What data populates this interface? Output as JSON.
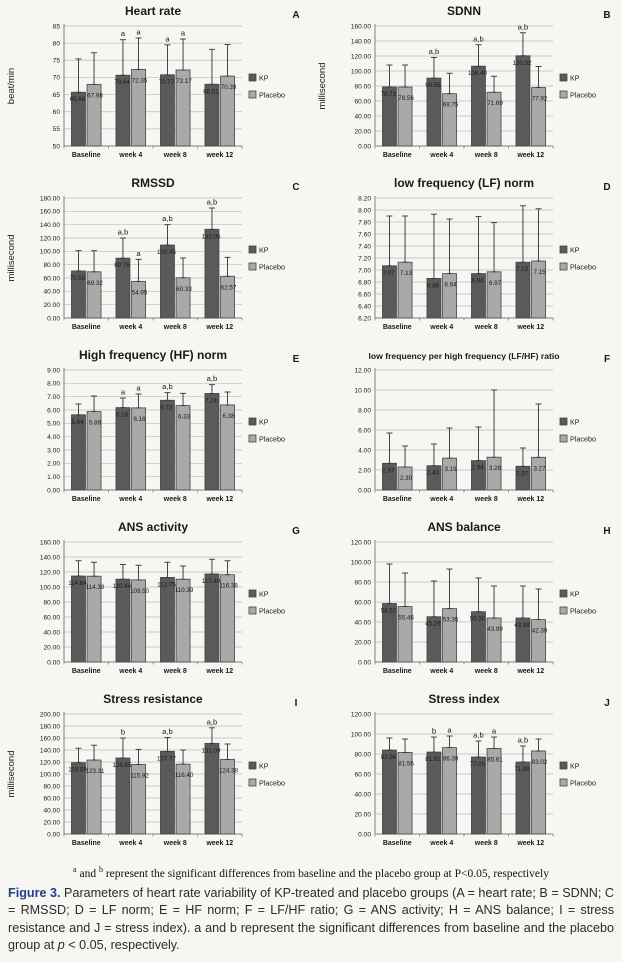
{
  "legend": {
    "kp_label": "KP",
    "placebo_label": "Placebo"
  },
  "colors": {
    "kp": "#5a5a5a",
    "placebo": "#a9a9a9",
    "bar_border": "#454545",
    "grid": "#bdbdbd",
    "axis": "#808080",
    "caption_label": "#23408e"
  },
  "footnote": {
    "sup_a": "a",
    "mid": " and ",
    "sup_b": "b",
    "rest": " represent the significant differences from baseline and the placebo group at P<0.05, respectively"
  },
  "caption": {
    "label": "Figure 3.",
    "body": " Parameters of heart rate variability of KP-treated and placebo groups (A = heart rate; B = SDNN; C = RMSSD; D = LF norm; E = HF norm; F = LF/HF ratio; G = ANS activity; H = ANS balance; I = stress resistance and J = stress index). a and b represent the significant differences from baseline and the placebo group at ",
    "p_italic": "p",
    "tail": " < 0.05, respectively."
  },
  "chart_data": [
    {
      "panel": "A",
      "type": "bar",
      "title": "Heart rate",
      "title_size": 12,
      "ylabel": "beat/min",
      "ylim": [
        50,
        85
      ],
      "ystep": 5,
      "ydec": 0,
      "categories": [
        "Baseline",
        "week 4",
        "week 8",
        "week 12"
      ],
      "series": [
        {
          "name": "KP",
          "values": [
            65.68,
            70.64,
            70.77,
            68.01
          ],
          "err_top": [
            75.4,
            81.0,
            79.5,
            78.2
          ],
          "sig": [
            "",
            "a",
            "a",
            ""
          ]
        },
        {
          "name": "Placebo",
          "values": [
            67.98,
            72.35,
            72.17,
            70.39
          ],
          "err_top": [
            77.2,
            81.5,
            81.2,
            79.6
          ],
          "sig": [
            "",
            "a",
            "a",
            ""
          ]
        }
      ]
    },
    {
      "panel": "B",
      "type": "bar",
      "title": "SDNN",
      "title_size": 12,
      "ylabel": "millisecond",
      "ylim": [
        0,
        160
      ],
      "ystep": 20,
      "ydec": 2,
      "categories": [
        "Baseline",
        "week 4",
        "week 8",
        "week 12"
      ],
      "series": [
        {
          "name": "KP",
          "values": [
            78.73,
            90.56,
            106.4,
            120.32
          ],
          "err_top": [
            108,
            118,
            135,
            151
          ],
          "sig": [
            "",
            "a,b",
            "a,b",
            "a,b"
          ]
        },
        {
          "name": "Placebo",
          "values": [
            78.56,
            69.75,
            71.69,
            77.92
          ],
          "err_top": [
            108,
            97,
            93,
            106
          ],
          "sig": [
            "",
            "",
            "",
            ""
          ]
        }
      ]
    },
    {
      "panel": "C",
      "type": "bar",
      "title": "RMSSD",
      "title_size": 12,
      "ylabel": "millisecond",
      "ylim": [
        0,
        180
      ],
      "ystep": 20,
      "ydec": 2,
      "categories": [
        "Baseline",
        "week 4",
        "week 8",
        "week 12"
      ],
      "series": [
        {
          "name": "KP",
          "values": [
            70.55,
            89.76,
            109.45,
            133.05
          ],
          "err_top": [
            101,
            120,
            140,
            165
          ],
          "sig": [
            "",
            "a,b",
            "a,b",
            "a,b"
          ]
        },
        {
          "name": "Placebo",
          "values": [
            69.32,
            54.95,
            60.33,
            62.57
          ],
          "err_top": [
            101,
            88,
            90,
            91
          ],
          "sig": [
            "",
            "a",
            "",
            ""
          ]
        }
      ]
    },
    {
      "panel": "D",
      "type": "bar",
      "title": "low frequency (LF) norm",
      "title_size": 12,
      "ylabel": "",
      "ylim": [
        6.2,
        8.2
      ],
      "ystep": 0.2,
      "ydec": 2,
      "categories": [
        "Baseline",
        "week 4",
        "week 8",
        "week 12"
      ],
      "series": [
        {
          "name": "KP",
          "values": [
            7.07,
            6.86,
            6.94,
            7.13
          ],
          "err_top": [
            7.9,
            7.93,
            7.89,
            8.07
          ],
          "sig": [
            "",
            "",
            "",
            ""
          ]
        },
        {
          "name": "Placebo",
          "values": [
            7.13,
            6.94,
            6.97,
            7.15
          ],
          "err_top": [
            7.9,
            7.85,
            7.79,
            8.02
          ],
          "sig": [
            "",
            "",
            "",
            ""
          ]
        }
      ]
    },
    {
      "panel": "E",
      "type": "bar",
      "title": "High frequency (HF) norm",
      "title_size": 12,
      "ylabel": "",
      "ylim": [
        0,
        9.0
      ],
      "ystep": 1.0,
      "ydec": 2,
      "categories": [
        "Baseline",
        "week 4",
        "week 8",
        "week 12"
      ],
      "series": [
        {
          "name": "KP",
          "values": [
            5.64,
            6.18,
            6.73,
            7.24
          ],
          "err_top": [
            6.45,
            6.9,
            7.3,
            7.9
          ],
          "sig": [
            "",
            "a",
            "a,b",
            "a,b"
          ]
        },
        {
          "name": "Placebo",
          "values": [
            5.88,
            6.16,
            6.33,
            6.38
          ],
          "err_top": [
            7.05,
            7.2,
            7.25,
            7.35
          ],
          "sig": [
            "",
            "a",
            "",
            ""
          ]
        }
      ]
    },
    {
      "panel": "F",
      "type": "bar",
      "title": "low frequency per high frequency (LF/HF)  ratio",
      "title_size": 8.6,
      "ylabel": "",
      "ylim": [
        0,
        12.0
      ],
      "ystep": 2.0,
      "ydec": 2,
      "categories": [
        "Baseline",
        "week 4",
        "week 8",
        "week 12"
      ],
      "series": [
        {
          "name": "KP",
          "values": [
            2.67,
            2.43,
            2.94,
            2.37
          ],
          "err_top": [
            5.7,
            4.6,
            6.3,
            4.2
          ],
          "sig": [
            "",
            "",
            "",
            ""
          ]
        },
        {
          "name": "Placebo",
          "values": [
            2.3,
            3.19,
            3.28,
            3.27
          ],
          "err_top": [
            4.4,
            6.2,
            10.0,
            8.6
          ],
          "sig": [
            "",
            "",
            "",
            ""
          ]
        }
      ]
    },
    {
      "panel": "G",
      "type": "bar",
      "title": "ANS activity",
      "title_size": 12,
      "ylabel": "",
      "ylim": [
        0,
        160
      ],
      "ystep": 20,
      "ydec": 2,
      "categories": [
        "Baseline",
        "week 4",
        "week 8",
        "week 12"
      ],
      "series": [
        {
          "name": "KP",
          "values": [
            114.64,
            110.44,
            112.75,
            117.4
          ],
          "err_top": [
            135,
            130,
            133,
            137
          ],
          "sig": [
            "",
            "",
            "",
            ""
          ]
        },
        {
          "name": "Placebo",
          "values": [
            114.39,
            109.5,
            110.39,
            116.38
          ],
          "err_top": [
            133,
            129,
            128,
            135
          ],
          "sig": [
            "",
            "",
            "",
            ""
          ]
        }
      ]
    },
    {
      "panel": "H",
      "type": "bar",
      "title": "ANS balance",
      "title_size": 12,
      "ylabel": "",
      "ylim": [
        0,
        120
      ],
      "ystep": 20,
      "ydec": 2,
      "categories": [
        "Baseline",
        "week 4",
        "week 8",
        "week 12"
      ],
      "series": [
        {
          "name": "KP",
          "values": [
            58.52,
            45.26,
            50.3,
            43.98
          ],
          "err_top": [
            98,
            81,
            84,
            76
          ],
          "sig": [
            "",
            "",
            "",
            ""
          ]
        },
        {
          "name": "Placebo",
          "values": [
            55.46,
            53.35,
            43.99,
            42.39
          ],
          "err_top": [
            89,
            93,
            76,
            73
          ],
          "sig": [
            "",
            "",
            "",
            ""
          ]
        }
      ]
    },
    {
      "panel": "I",
      "type": "bar",
      "title": "Stress resistance",
      "title_size": 12,
      "ylabel": "millisecond",
      "ylim": [
        0,
        200
      ],
      "ystep": 20,
      "ydec": 2,
      "categories": [
        "Baseline",
        "week 4",
        "week 8",
        "week 12"
      ],
      "series": [
        {
          "name": "KP",
          "values": [
            118.89,
            126.65,
            137.77,
            151.09
          ],
          "err_top": [
            143,
            160,
            161,
            177
          ],
          "sig": [
            "",
            "b",
            "a,b",
            "a,b"
          ]
        },
        {
          "name": "Placebo",
          "values": [
            123.31,
            115.92,
            116.4,
            124.38
          ],
          "err_top": [
            148,
            141,
            140,
            150
          ],
          "sig": [
            "",
            "",
            "",
            ""
          ]
        }
      ]
    },
    {
      "panel": "J",
      "type": "bar",
      "title": "Stress index",
      "title_size": 12,
      "ylabel": "",
      "ylim": [
        0,
        120
      ],
      "ystep": 20,
      "ydec": 2,
      "categories": [
        "Baseline",
        "week 4",
        "week 8",
        "week 12"
      ],
      "series": [
        {
          "name": "KP",
          "values": [
            83.96,
            81.91,
            77.0,
            71.99
          ],
          "err_top": [
            96,
            97,
            93,
            88
          ],
          "sig": [
            "",
            "b",
            "a,b",
            "a,b"
          ]
        },
        {
          "name": "Placebo",
          "values": [
            81.56,
            86.39,
            85.61,
            83.02
          ],
          "err_top": [
            95,
            98,
            97,
            95
          ],
          "sig": [
            "",
            "a",
            "a",
            ""
          ]
        }
      ]
    }
  ]
}
